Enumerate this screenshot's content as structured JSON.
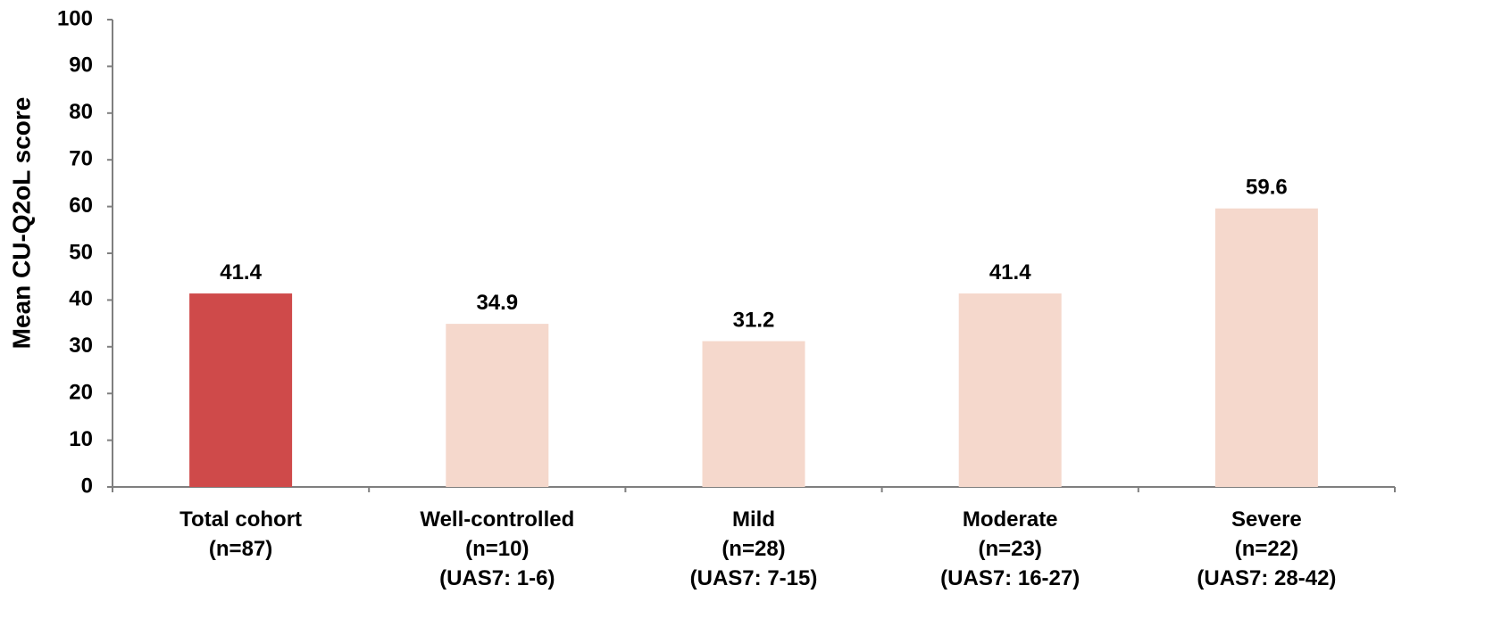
{
  "chart_data": {
    "type": "bar",
    "title": "",
    "xlabel": "",
    "ylabel": "Mean CU-Q2oL score",
    "ylim": [
      0,
      100
    ],
    "yticks": [
      0,
      10,
      20,
      30,
      40,
      50,
      60,
      70,
      80,
      90,
      100
    ],
    "grid": false,
    "legend": "none",
    "categories": [
      [
        "Total cohort",
        "(n=87)"
      ],
      [
        "Well-controlled",
        "(n=10)",
        "(UAS7: 1-6)"
      ],
      [
        "Mild",
        "(n=28)",
        "(UAS7: 7-15)"
      ],
      [
        "Moderate",
        "(n=23)",
        "(UAS7: 16-27)"
      ],
      [
        "Severe",
        "(n=22)",
        "(UAS7: 28-42)"
      ]
    ],
    "values": [
      41.4,
      34.9,
      31.2,
      41.4,
      59.6
    ],
    "data_labels": [
      "41.4",
      "34.9",
      "31.2",
      "41.4",
      "59.6"
    ],
    "colors": {
      "highlight": "#cf4a4a",
      "bar": "#f5d8cc",
      "axis": "#7f7f7f"
    },
    "bar_colors": [
      "highlight",
      "bar",
      "bar",
      "bar",
      "bar"
    ]
  }
}
